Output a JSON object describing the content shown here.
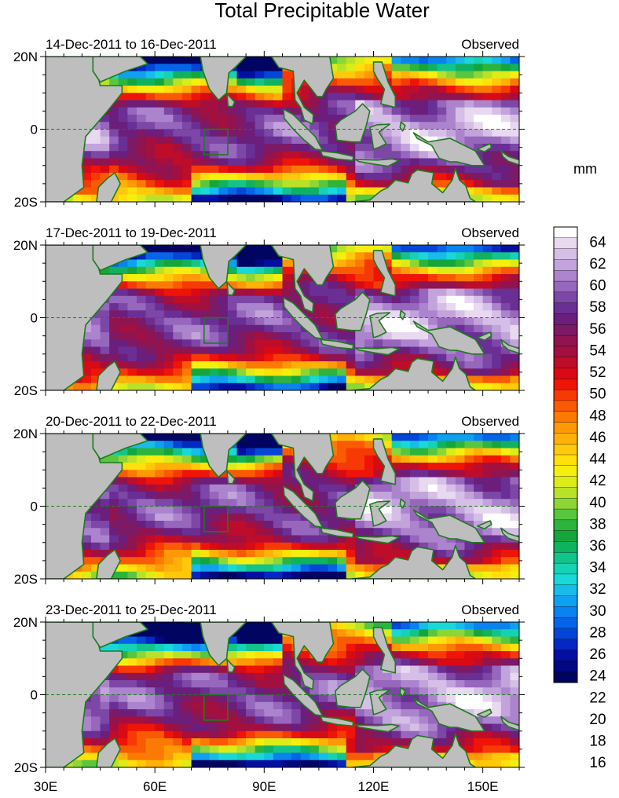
{
  "title": "Total Precipitable Water",
  "units": "mm",
  "panels": [
    {
      "left_title": "14-Dec-2011 to 16-Dec-2011",
      "right_title": "Observed"
    },
    {
      "left_title": "17-Dec-2011 to 19-Dec-2011",
      "right_title": "Observed"
    },
    {
      "left_title": "20-Dec-2011 to 22-Dec-2011",
      "right_title": "Observed"
    },
    {
      "left_title": "23-Dec-2011 to 25-Dec-2011",
      "right_title": "Observed"
    }
  ],
  "lat_labels": [
    "20N",
    "0",
    "20S"
  ],
  "lon_labels": [
    "30E",
    "60E",
    "90E",
    "120E",
    "150E"
  ],
  "colorbar": {
    "tick_labels": [
      "64",
      "62",
      "60",
      "58",
      "56",
      "54",
      "52",
      "50",
      "48",
      "46",
      "44",
      "42",
      "40",
      "38",
      "36",
      "34",
      "32",
      "30",
      "28",
      "26",
      "24",
      "22",
      "20",
      "18",
      "16"
    ],
    "colors_top_to_bottom": [
      "#ffffff",
      "#e8d8f0",
      "#d6bfe6",
      "#c3a3db",
      "#ac84cd",
      "#9766bd",
      "#7c47a6",
      "#6a2f95",
      "#6b1e7c",
      "#7c1a66",
      "#8f1450",
      "#a31040",
      "#bd0d2a",
      "#d80a14",
      "#ee1408",
      "#f73a05",
      "#f95a03",
      "#fb7a04",
      "#fd9806",
      "#ffb108",
      "#ffc909",
      "#ffe00b",
      "#f6ef0e",
      "#dcec18",
      "#b8e228",
      "#8cd636",
      "#58c640",
      "#2cb43c",
      "#14a63d",
      "#0fb25f",
      "#12c48a",
      "#16d2b4",
      "#19d8d8",
      "#16bde8",
      "#10a0f0",
      "#0a82f0",
      "#0664e8",
      "#0446d8",
      "#0428c0",
      "#030fa0",
      "#020880",
      "#020462"
    ]
  }
}
